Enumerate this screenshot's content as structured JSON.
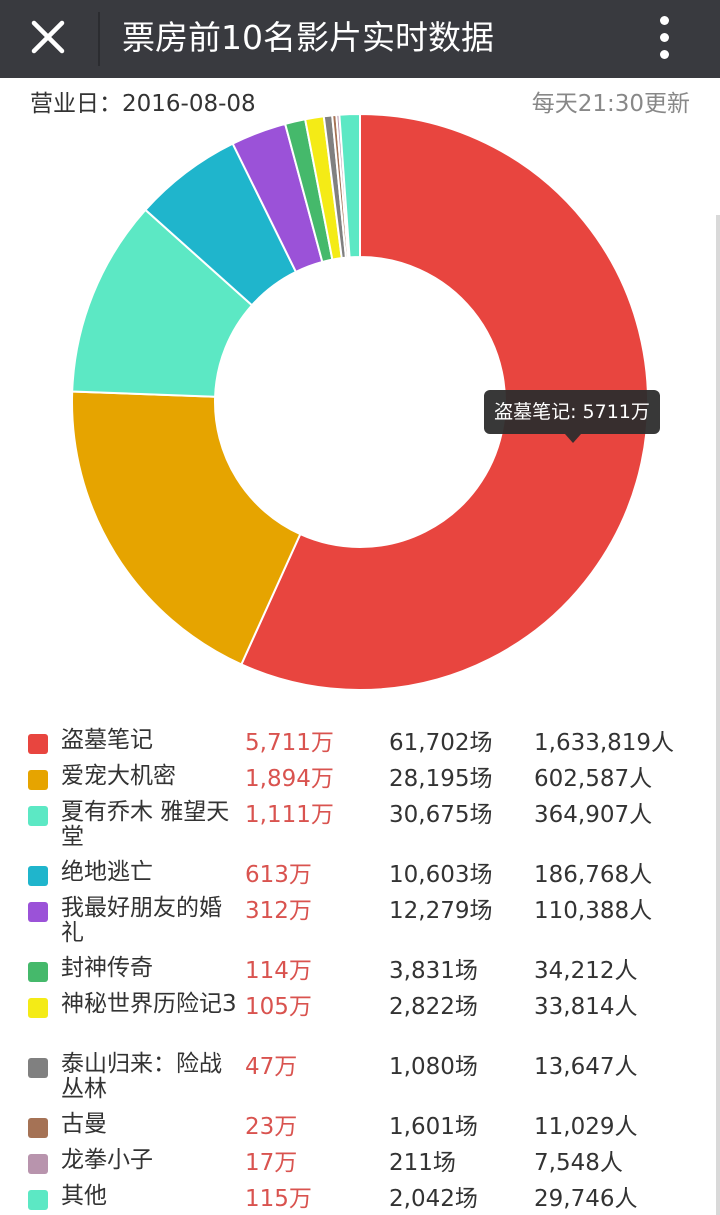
{
  "header": {
    "title": "票房前10名影片实时数据",
    "close_icon": "close-icon",
    "menu_icon": "more-vertical-icon"
  },
  "info": {
    "date_label": "营业日：",
    "date": "2016-08-08",
    "update_note": "每天21:30更新"
  },
  "chart_data": {
    "type": "pie",
    "variant": "donut",
    "tooltip": "盗墓笔记: 5711万",
    "series": [
      {
        "name": "盗墓笔记",
        "box": "5,711万",
        "value": 5711,
        "shows": "61,702场",
        "people": "1,633,819人",
        "color": "#e8453f"
      },
      {
        "name": "爱宠大机密",
        "box": "1,894万",
        "value": 1894,
        "shows": "28,195场",
        "people": "602,587人",
        "color": "#e6a400"
      },
      {
        "name": "夏有乔木 雅望天堂",
        "box": "1,111万",
        "value": 1111,
        "shows": "30,675场",
        "people": "364,907人",
        "color": "#5ce8c4"
      },
      {
        "name": "绝地逃亡",
        "box": "613万",
        "value": 613,
        "shows": "10,603场",
        "people": "186,768人",
        "color": "#1fb5cc"
      },
      {
        "name": "我最好朋友的婚礼",
        "box": "312万",
        "value": 312,
        "shows": "12,279场",
        "people": "110,388人",
        "color": "#9b52d8"
      },
      {
        "name": "封神传奇",
        "box": "114万",
        "value": 114,
        "shows": "3,831场",
        "people": "34,212人",
        "color": "#45b96b"
      },
      {
        "name": "神秘世界历险记3",
        "box": "105万",
        "value": 105,
        "shows": "2,822场",
        "people": "33,814人",
        "color": "#f4eb16"
      },
      {
        "name": "泰山归来：险战丛林",
        "box": "47万",
        "value": 47,
        "shows": "1,080场",
        "people": "13,647人",
        "color": "#808080"
      },
      {
        "name": "古曼",
        "box": "23万",
        "value": 23,
        "shows": "1,601场",
        "people": "11,029人",
        "color": "#a57255"
      },
      {
        "name": "龙拳小子",
        "box": "17万",
        "value": 17,
        "shows": "211场",
        "people": "7,548人",
        "color": "#b894ad"
      },
      {
        "name": "其他",
        "box": "115万",
        "value": 115,
        "shows": "2,042场",
        "people": "29,746人",
        "color": "#5ce8c4"
      }
    ]
  }
}
